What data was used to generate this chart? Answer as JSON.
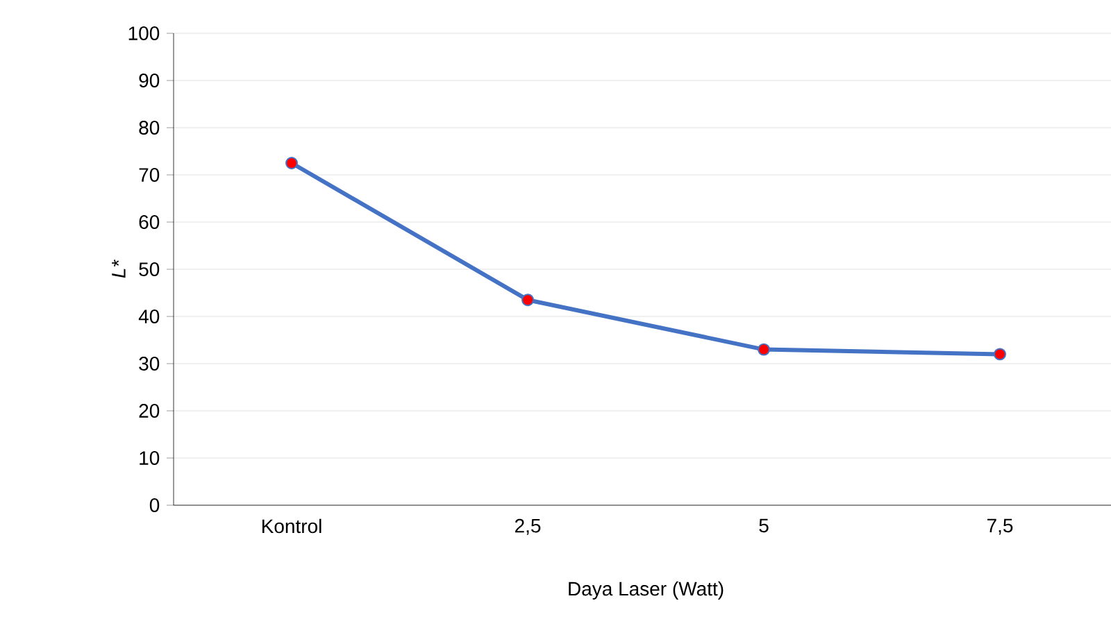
{
  "chart_data": {
    "type": "line",
    "xlabel": "Daya Laser (Watt)",
    "ylabel": "L*",
    "categories": [
      "Kontrol",
      "2,5",
      "5",
      "7,5"
    ],
    "series": [
      {
        "color": "#4472c4",
        "values": [
          72.5,
          43.5,
          33,
          32
        ]
      }
    ],
    "ylim": [
      0,
      100
    ],
    "yticks": [
      0,
      10,
      20,
      30,
      40,
      50,
      60,
      70,
      80,
      90,
      100
    ],
    "grid": "y",
    "marker": "circle",
    "line_style": "solid"
  }
}
